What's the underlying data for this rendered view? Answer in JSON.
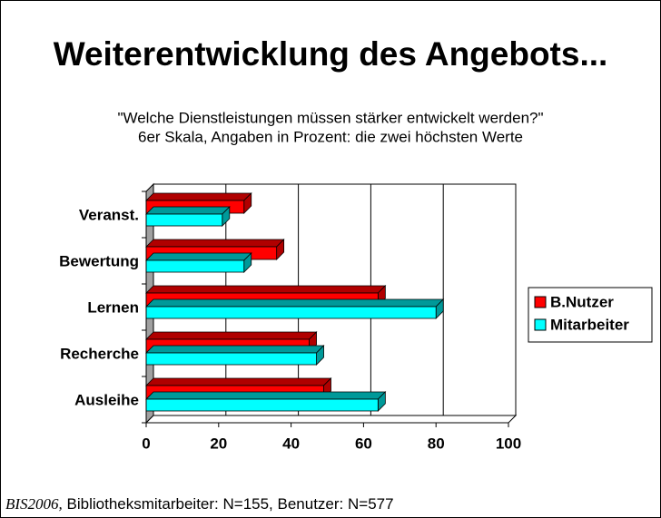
{
  "chart_data": {
    "type": "bar3d_horizontal",
    "title": "Weiterentwicklung des Angebots...",
    "subtitle": [
      "\"Welche Dienstleistungen müssen stärker entwickelt werden?\"",
      "6er Skala, Angaben in Prozent: die zwei höchsten Werte"
    ],
    "categories": [
      "Veranst.",
      "Bewertung",
      "Lernen",
      "Recherche",
      "Ausleihe"
    ],
    "series": [
      {
        "name": "B.Nutzer",
        "color": "#ff0000",
        "values": [
          27,
          36,
          64,
          45,
          49
        ]
      },
      {
        "name": "Mitarbeiter",
        "color": "#00ffff",
        "values": [
          21,
          27,
          80,
          47,
          64
        ]
      }
    ],
    "xlim": [
      0,
      100
    ],
    "xticks": [
      0,
      20,
      40,
      60,
      80,
      100
    ],
    "grid": true,
    "legend": "right",
    "footer": {
      "source": "BIS2006,",
      "note": "Bibliotheksmitarbeiter: N=155, Benutzer: N=577"
    }
  }
}
